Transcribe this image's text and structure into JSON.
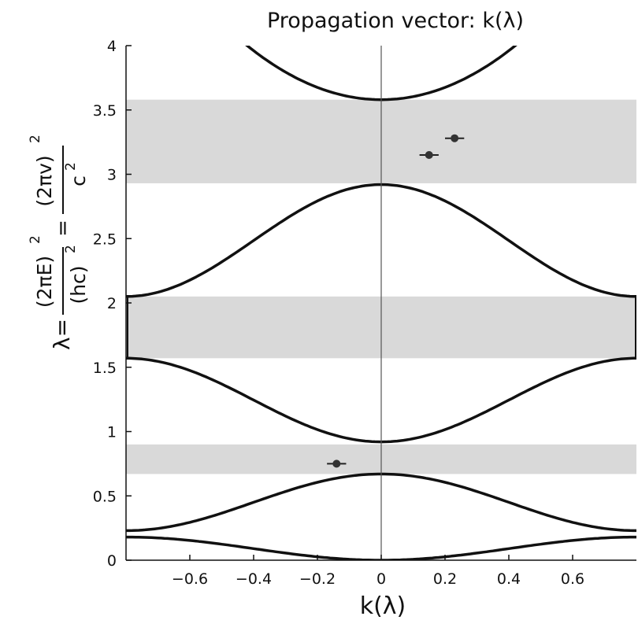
{
  "chart_data": {
    "type": "line",
    "title": "Propagation vector: k(λ)",
    "xlabel": "k(λ)",
    "ylabel": {
      "lhs": "λ=",
      "num1": "(2πE)",
      "den1": "(hc)",
      "eq": "=",
      "num2": "(2πv)",
      "den2": "c",
      "exp": "2"
    },
    "xlim": [
      -0.8,
      0.8
    ],
    "ylim": [
      0,
      4
    ],
    "xticks": [
      -0.6,
      -0.4,
      -0.2,
      0,
      0.2,
      0.4,
      0.6
    ],
    "xtick_labels": [
      "−0.6",
      "−0.4",
      "−0.2",
      "0",
      "0.2",
      "0.4",
      "0.6"
    ],
    "yticks": [
      0,
      0.5,
      1,
      1.5,
      2,
      2.5,
      3,
      3.5,
      4
    ],
    "ytick_labels": [
      "0",
      "0.5",
      "1",
      "1.5",
      "2",
      "2.5",
      "3",
      "3.5",
      "4"
    ],
    "grid": false,
    "band_gaps": [
      {
        "y0": 0.67,
        "y1": 0.9
      },
      {
        "y0": 1.57,
        "y1": 2.05
      },
      {
        "y0": 2.93,
        "y1": 3.58
      }
    ],
    "band_gap_color": "#d9d9d9",
    "curve_color": "#111111",
    "bands": [
      {
        "kind": "down",
        "edge": 0.18,
        "center": 0.0
      },
      {
        "kind": "up",
        "edge": 0.23,
        "center": 0.67
      },
      {
        "kind": "down",
        "edge": 1.57,
        "center": 0.92
      },
      {
        "kind": "up",
        "edge": 2.05,
        "center": 2.92
      },
      {
        "kind": "parabola",
        "center": 3.58,
        "reach": 4.0,
        "reach_k": 0.42
      }
    ],
    "points": [
      {
        "x": -0.14,
        "y": 0.75,
        "err": 0.03
      },
      {
        "x": 0.15,
        "y": 3.15,
        "err": 0.03
      },
      {
        "x": 0.23,
        "y": 3.28,
        "err": 0.03
      }
    ]
  }
}
